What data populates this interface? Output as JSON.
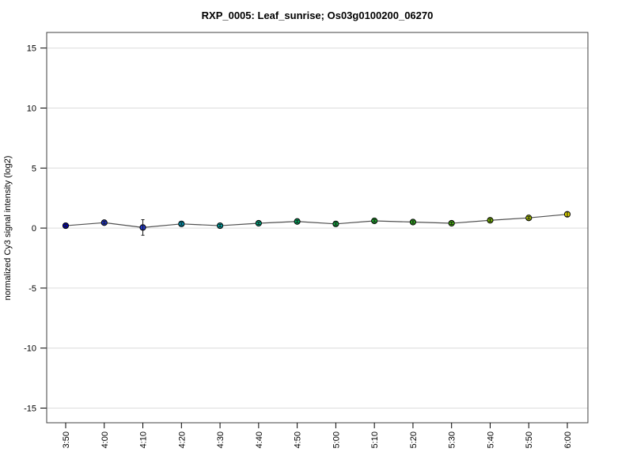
{
  "chart_data": {
    "type": "line",
    "title": "RXP_0005: Leaf_sunrise; Os03g0100200_06270",
    "xlabel": "",
    "ylabel": "normalized Cy3 signal intensity (log2)",
    "categories": [
      "3:50",
      "4:00",
      "4:10",
      "4:20",
      "4:30",
      "4:40",
      "4:50",
      "5:00",
      "5:10",
      "5:20",
      "5:30",
      "5:40",
      "5:50",
      "6:00"
    ],
    "series": [
      {
        "name": "normalized Cy3 signal",
        "values": [
          0.2,
          0.45,
          0.05,
          0.35,
          0.2,
          0.4,
          0.55,
          0.35,
          0.6,
          0.5,
          0.4,
          0.65,
          0.85,
          1.15
        ],
        "errors": [
          0.1,
          0.1,
          0.65,
          0.1,
          0.1,
          0.1,
          0.1,
          0.1,
          0.1,
          0.1,
          0.1,
          0.1,
          0.1,
          0.2
        ]
      }
    ],
    "point_colors": [
      "#0000B8",
      "#1D33CF",
      "#2038C8",
      "#00A0C0",
      "#00A4A4",
      "#00A880",
      "#00AB5E",
      "#0FAC3F",
      "#1FAD2E",
      "#2FAE1E",
      "#45B00F",
      "#7ABB04",
      "#A9C200",
      "#D6CC00"
    ],
    "ylim": [
      -15,
      15
    ],
    "yticks": [
      -15,
      -10,
      -5,
      0,
      5,
      10,
      15
    ],
    "grid": true,
    "legend_position": "none",
    "line_color": "#505050",
    "grid_color": "#DCDCDC",
    "frame_color": "#404040",
    "tick_color": "#000000",
    "error_bar_color": "#1a1a1a",
    "background_color": "#ffffff"
  }
}
